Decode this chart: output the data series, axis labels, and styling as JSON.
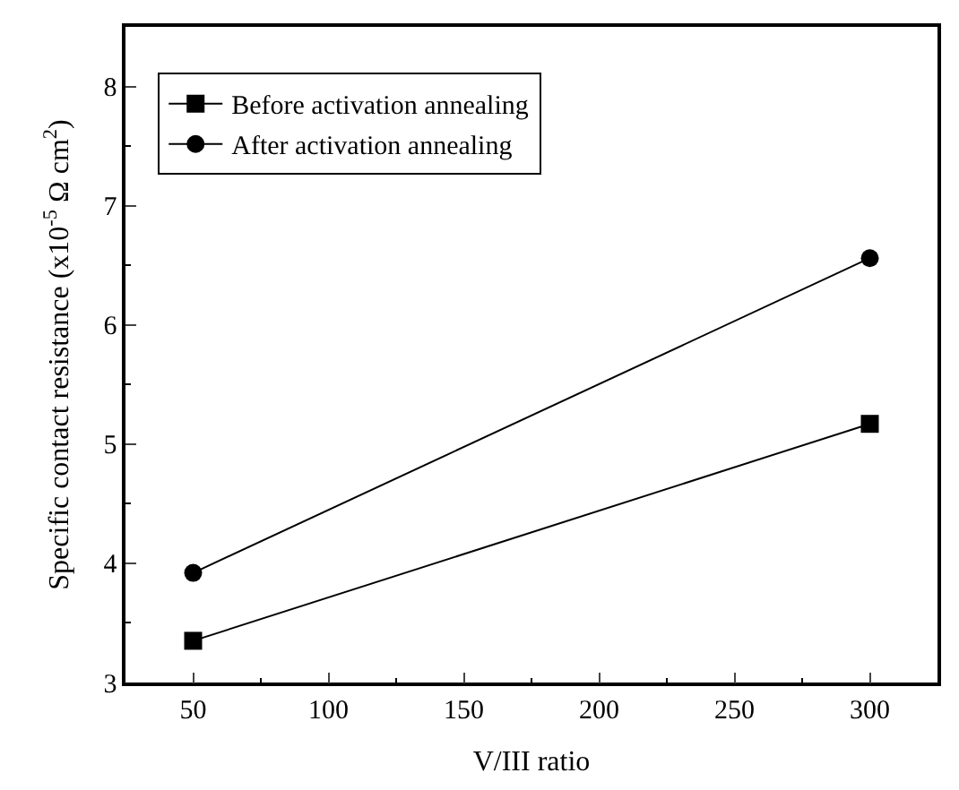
{
  "chart_data": {
    "type": "line",
    "xlabel": "V/III ratio",
    "ylabel": "Specific contact resistance (x10$^{-5}$ Ω cm$^{2}$)",
    "x": [
      50,
      300
    ],
    "series": [
      {
        "name": "Before activation annealing",
        "color": "#000000",
        "marker": "square",
        "values": [
          3.35,
          5.17
        ]
      },
      {
        "name": "After activation annealing",
        "color": "#000000",
        "marker": "circle",
        "values": [
          3.92,
          6.56
        ]
      }
    ],
    "xlim": [
      25,
      325
    ],
    "xticks": [
      50,
      100,
      150,
      200,
      250,
      300
    ],
    "ylim": [
      3,
      8.5
    ],
    "yticks": [
      3,
      4,
      5,
      6,
      7,
      8
    ],
    "legend": "top left",
    "line_style": "solid"
  }
}
